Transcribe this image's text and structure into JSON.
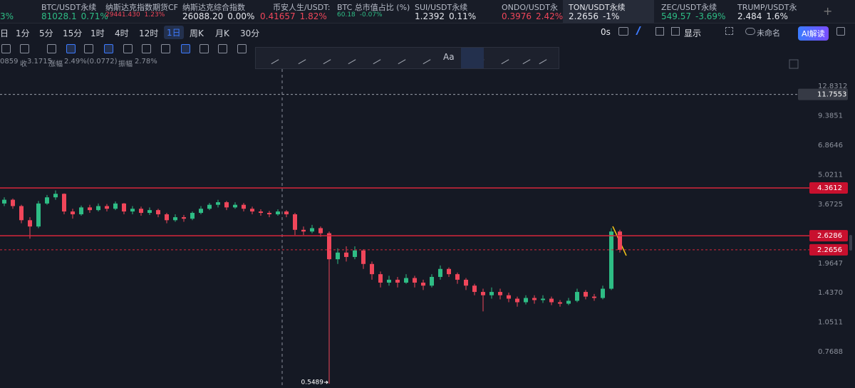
{
  "ticker": [
    {
      "change": "3%"
    },
    {
      "symbol": "BTC/USDT永续",
      "price": "81028.1",
      "change": "0.71%"
    },
    {
      "symbol": "纳斯达克指数期货CF",
      "price": "29441.430",
      "change": "1.23%"
    },
    {
      "symbol": "纳斯达克综合指数",
      "price": "26088.20",
      "change": "0.00%"
    },
    {
      "symbol": "币安人生/USDT:",
      "price": "0.41657",
      "change": "1.82%"
    },
    {
      "symbol": "BTC 总市值占比 (%)",
      "price": "60.18",
      "change": "-0.07%"
    },
    {
      "symbol": "SUI/USDT永续",
      "price": "1.2392",
      "change": "0.11%"
    },
    {
      "symbol": "ONDO/USDT永",
      "price": "0.3976",
      "change": "2.42%"
    },
    {
      "symbol": "TON/USDT永续",
      "price": "2.2656",
      "change": "-1%"
    },
    {
      "symbol": "ZEC/USDT永续",
      "price": "549.57",
      "change": "-3.69%"
    },
    {
      "symbol": "TRUMP/USDT永",
      "price": "2.484",
      "change": "1.6%"
    }
  ],
  "timeframes": [
    "日",
    "1分",
    "5分",
    "15分",
    "1时",
    "4时",
    "12时",
    "1日",
    "周K",
    "月K",
    "30分"
  ],
  "active_timeframe": 7,
  "top_right": {
    "countdown": "0s",
    "display": "显示",
    "layout_name": "未命名",
    "ai_button": "AI解读"
  },
  "info_bar": {
    "fragment": "0859",
    "items": [
      {
        "label": "收",
        "value": "3.1715"
      },
      {
        "label": "涨幅",
        "value": "2.49%(0.0772)"
      },
      {
        "label": "振幅",
        "value": "2.78%"
      }
    ]
  },
  "drawing_toolbar": {
    "text_tool": "Aa"
  },
  "chart_data": {
    "type": "candlestick",
    "log_scale": true,
    "up_color": "#2ebd85",
    "down_color": "#f0465a",
    "ylim": [
      0.524,
      15.03
    ],
    "yticks": [
      12.8312,
      9.3851,
      6.8646,
      5.0211,
      3.6725,
      1.9647,
      {
        "value": 1.437,
        "label": "1.4370"
      },
      1.0511,
      0.7688
    ],
    "levels": [
      11.7553,
      4.3612,
      2.6286
    ],
    "open": [
      3.7,
      3.85,
      3.6,
      3.1,
      2.9,
      3.7,
      3.95,
      4.1,
      3.4,
      3.3,
      3.55,
      3.45,
      3.6,
      3.5,
      3.7,
      3.4,
      3.5,
      3.35,
      3.45,
      3.3,
      3.1,
      3.2,
      3.15,
      3.35,
      3.5,
      3.65,
      3.75,
      3.55,
      3.65,
      3.5,
      3.4,
      3.35,
      3.3,
      3.4,
      3.3,
      2.8,
      2.75,
      2.85,
      2.7,
      2.05,
      2.2,
      2.1,
      2.25,
      1.95,
      1.75,
      1.6,
      1.65,
      1.6,
      1.68,
      1.6,
      1.55,
      1.7,
      1.85,
      1.75,
      1.65,
      1.55,
      1.45,
      1.4,
      1.45,
      1.4,
      1.35,
      1.3,
      1.36,
      1.33,
      1.35,
      1.3,
      1.28,
      1.32,
      1.45,
      1.38,
      1.36,
      1.5,
      2.75
    ],
    "high": [
      3.95,
      3.9,
      3.65,
      3.2,
      3.8,
      4.05,
      4.25,
      4.12,
      3.5,
      3.62,
      3.65,
      3.7,
      3.68,
      3.78,
      3.72,
      3.6,
      3.58,
      3.55,
      3.5,
      3.35,
      3.3,
      3.28,
      3.4,
      3.6,
      3.72,
      3.85,
      3.8,
      3.75,
      3.72,
      3.58,
      3.48,
      3.42,
      3.48,
      3.45,
      3.35,
      2.9,
      2.95,
      2.9,
      2.75,
      2.3,
      2.35,
      2.35,
      2.28,
      2.0,
      1.8,
      1.72,
      1.7,
      1.75,
      1.72,
      1.65,
      1.75,
      1.92,
      1.88,
      1.78,
      1.68,
      1.58,
      1.5,
      1.52,
      1.5,
      1.44,
      1.38,
      1.4,
      1.4,
      1.4,
      1.38,
      1.33,
      1.36,
      1.5,
      1.48,
      1.42,
      1.55,
      2.85,
      2.8
    ],
    "low": [
      3.6,
      3.5,
      3.0,
      2.55,
      2.85,
      3.65,
      3.85,
      3.3,
      3.15,
      3.25,
      3.35,
      3.4,
      3.4,
      3.45,
      3.3,
      3.3,
      3.25,
      3.28,
      3.2,
      3.0,
      3.05,
      3.05,
      3.1,
      3.3,
      3.45,
      3.55,
      3.45,
      3.5,
      3.4,
      3.3,
      3.25,
      3.2,
      3.25,
      3.2,
      2.65,
      2.65,
      2.7,
      2.6,
      0.5489,
      1.95,
      2.0,
      2.05,
      1.85,
      1.65,
      1.52,
      1.55,
      1.52,
      1.58,
      1.52,
      1.48,
      1.52,
      1.65,
      1.7,
      1.58,
      1.48,
      1.4,
      1.18,
      1.35,
      1.34,
      1.3,
      1.24,
      1.27,
      1.28,
      1.29,
      1.26,
      1.24,
      1.26,
      1.3,
      1.34,
      1.32,
      1.34,
      1.48,
      2.2
    ],
    "close": [
      3.85,
      3.6,
      3.1,
      2.9,
      3.7,
      3.95,
      4.1,
      3.4,
      3.3,
      3.55,
      3.45,
      3.6,
      3.5,
      3.7,
      3.4,
      3.5,
      3.35,
      3.45,
      3.3,
      3.1,
      3.2,
      3.15,
      3.35,
      3.5,
      3.65,
      3.75,
      3.55,
      3.65,
      3.5,
      3.4,
      3.35,
      3.3,
      3.4,
      3.3,
      2.8,
      2.75,
      2.85,
      2.7,
      2.05,
      2.2,
      2.1,
      2.25,
      1.95,
      1.75,
      1.6,
      1.65,
      1.6,
      1.68,
      1.6,
      1.55,
      1.7,
      1.85,
      1.75,
      1.65,
      1.55,
      1.45,
      1.4,
      1.45,
      1.4,
      1.35,
      1.3,
      1.36,
      1.33,
      1.35,
      1.3,
      1.28,
      1.32,
      1.45,
      1.38,
      1.36,
      1.5,
      2.75,
      2.2656
    ]
  }
}
